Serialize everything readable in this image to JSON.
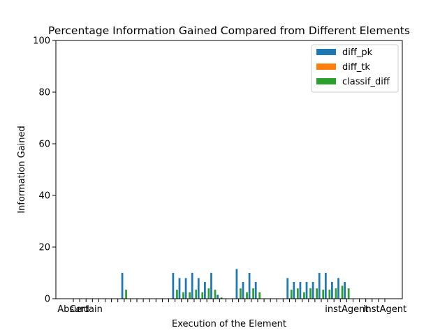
{
  "chart_data": {
    "type": "bar",
    "title": "Percentage Information Gained Compared from Different Elements",
    "xlabel": "Execution of the Element",
    "ylabel": "Information Gained",
    "ylim": [
      0,
      100
    ],
    "yticks": [
      0,
      20,
      40,
      60,
      80,
      100
    ],
    "grid": false,
    "legend_position": "top-right",
    "categories": [
      "Absurd",
      "",
      "Certain",
      "",
      "",
      "",
      "",
      "",
      "",
      "",
      "",
      "",
      "",
      "",
      "",
      "",
      "",
      "",
      "",
      "",
      "",
      "",
      "",
      "",
      "",
      "",
      "",
      "",
      "",
      "",
      "",
      "",
      "",
      "",
      "",
      "",
      "",
      "",
      "",
      "",
      "",
      "",
      "",
      "instAgent",
      "",
      "",
      "",
      "",
      "",
      "instAgent"
    ],
    "series": [
      {
        "name": "diff_pk",
        "color": "#1f77b4",
        "values": [
          0,
          0,
          0,
          0,
          0,
          0,
          0,
          0,
          10,
          0,
          0,
          0,
          0,
          0,
          0,
          0,
          10,
          8,
          8,
          10,
          8,
          6.5,
          10,
          1.5,
          0,
          0,
          11.5,
          6.5,
          10,
          6.5,
          0,
          0,
          0,
          0,
          8,
          6.5,
          6.5,
          6.5,
          6.5,
          10,
          10,
          6.5,
          8,
          6.5,
          0,
          0,
          0,
          0,
          0,
          0
        ]
      },
      {
        "name": "diff_tk",
        "color": "#ff7f0e",
        "values": [
          0,
          0,
          0,
          0,
          0,
          0,
          0,
          0,
          0,
          0,
          0,
          0,
          0,
          0,
          0,
          0,
          0,
          0,
          0,
          0,
          0,
          0,
          0,
          0,
          0,
          0,
          0,
          0,
          0,
          0,
          0,
          0,
          0,
          0,
          0,
          0,
          0,
          0,
          0,
          0,
          0,
          0,
          0,
          0,
          0,
          0,
          0,
          0,
          0,
          0
        ]
      },
      {
        "name": "classif_diff",
        "color": "#2ca02c",
        "values": [
          0,
          0,
          0,
          0,
          0,
          0,
          0,
          0,
          3.5,
          0,
          0,
          0,
          0,
          0,
          0,
          0,
          3.5,
          2.5,
          2.5,
          3.5,
          2.5,
          4,
          3.5,
          0.5,
          0,
          0,
          4,
          2.5,
          4,
          2.5,
          0,
          0,
          0,
          0,
          3.5,
          4,
          2.5,
          4,
          4,
          3.5,
          3.5,
          4,
          5,
          4,
          0,
          0,
          0,
          0,
          0,
          0
        ]
      }
    ]
  }
}
